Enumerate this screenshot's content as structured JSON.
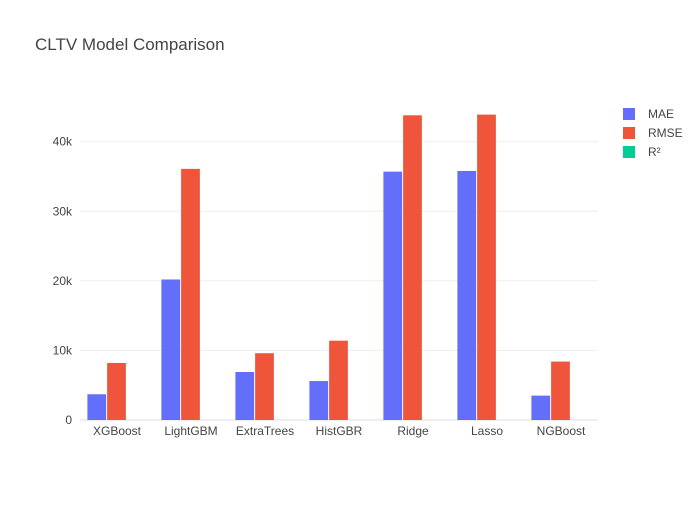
{
  "chart_data": {
    "type": "bar",
    "title": "CLTV Model Comparison",
    "xlabel": "",
    "ylabel": "",
    "categories": [
      "XGBoost",
      "LightGBM",
      "ExtraTrees",
      "HistGBR",
      "Ridge",
      "Lasso",
      "NGBoost"
    ],
    "series": [
      {
        "name": "MAE",
        "color": "#636efa",
        "values": [
          3700,
          20200,
          6900,
          5600,
          35700,
          35800,
          3500
        ]
      },
      {
        "name": "RMSE",
        "color": "#ef553b",
        "values": [
          8200,
          36100,
          9600,
          11400,
          43800,
          43900,
          8400
        ]
      },
      {
        "name": "R²",
        "color": "#00cc96",
        "values": [
          0.9,
          0.4,
          0.9,
          0.8,
          0.1,
          0.1,
          0.9
        ]
      }
    ],
    "ylim": [
      0,
      46000
    ],
    "yticks": [
      0,
      10000,
      20000,
      30000,
      40000
    ],
    "ytick_labels": [
      "0",
      "10k",
      "20k",
      "30k",
      "40k"
    ],
    "grid": true,
    "legend_position": "top-right"
  }
}
